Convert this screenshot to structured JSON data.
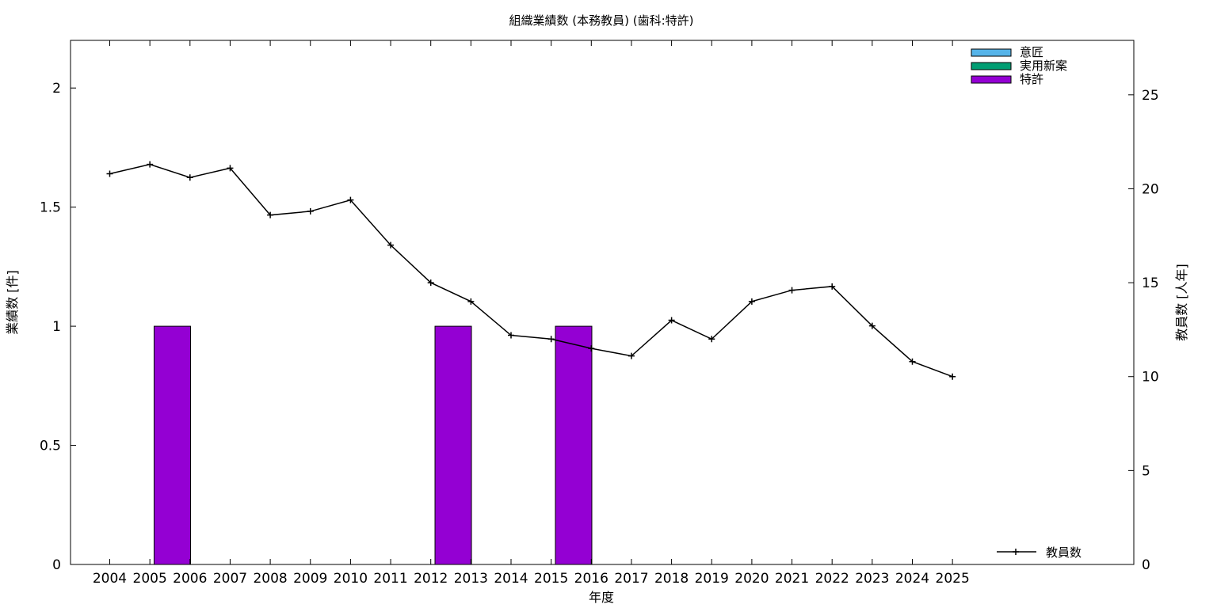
{
  "chart_data": {
    "type": "bar",
    "title": "組織業績数 (本務教員) (歯科:特許)",
    "xlabel": "年度",
    "ylabel": "業績数 [件]",
    "y2label": "教員数 [人年]",
    "categories": [
      "2004",
      "2005",
      "2006",
      "2007",
      "2008",
      "2009",
      "2010",
      "2011",
      "2012",
      "2013",
      "2014",
      "2015",
      "2016",
      "2017",
      "2018",
      "2019",
      "2020",
      "2021",
      "2022",
      "2023",
      "2024",
      "2025"
    ],
    "ylim": [
      0,
      2.2
    ],
    "yticks": [
      0,
      0.5,
      1,
      1.5,
      2
    ],
    "ytick_labels": [
      "0",
      "0.5",
      "1",
      "1.5",
      "2"
    ],
    "y2lim": [
      0,
      27.9
    ],
    "y2ticks": [
      0,
      5,
      10,
      15,
      20,
      25
    ],
    "y2tick_labels": [
      "0",
      "5",
      "10",
      "15",
      "20",
      "25"
    ],
    "stacked": true,
    "series": [
      {
        "name": "意匠",
        "color": "#56b4e9",
        "values": [
          0,
          0,
          0,
          0,
          0,
          0,
          0,
          0,
          0,
          0,
          0,
          0,
          0,
          0,
          0,
          0,
          0,
          0,
          0,
          0,
          0,
          0
        ]
      },
      {
        "name": "実用新案",
        "color": "#009e73",
        "values": [
          0,
          0,
          0,
          0,
          0,
          0,
          0,
          0,
          0,
          0,
          0,
          0,
          0,
          0,
          0,
          0,
          0,
          0,
          0,
          0,
          0,
          0
        ]
      },
      {
        "name": "特許",
        "color": "#9400d3",
        "values": [
          0,
          1,
          0,
          0,
          0,
          0,
          0,
          0,
          1,
          0,
          0,
          1,
          0,
          0,
          0,
          0,
          0,
          0,
          0,
          0,
          0,
          0
        ]
      }
    ],
    "line_series": {
      "name": "教員数",
      "axis": "y2",
      "color": "#000000",
      "marker": "plus",
      "values": [
        20.8,
        21.3,
        20.6,
        21.1,
        18.6,
        18.8,
        19.4,
        17.0,
        15.0,
        14.0,
        12.2,
        12.0,
        11.5,
        11.1,
        13.0,
        12.0,
        14.0,
        14.6,
        14.8,
        12.7,
        10.8,
        10.0
      ]
    },
    "legend_placement": "top-right",
    "line_legend_placement": "bottom-right",
    "grid": false
  }
}
